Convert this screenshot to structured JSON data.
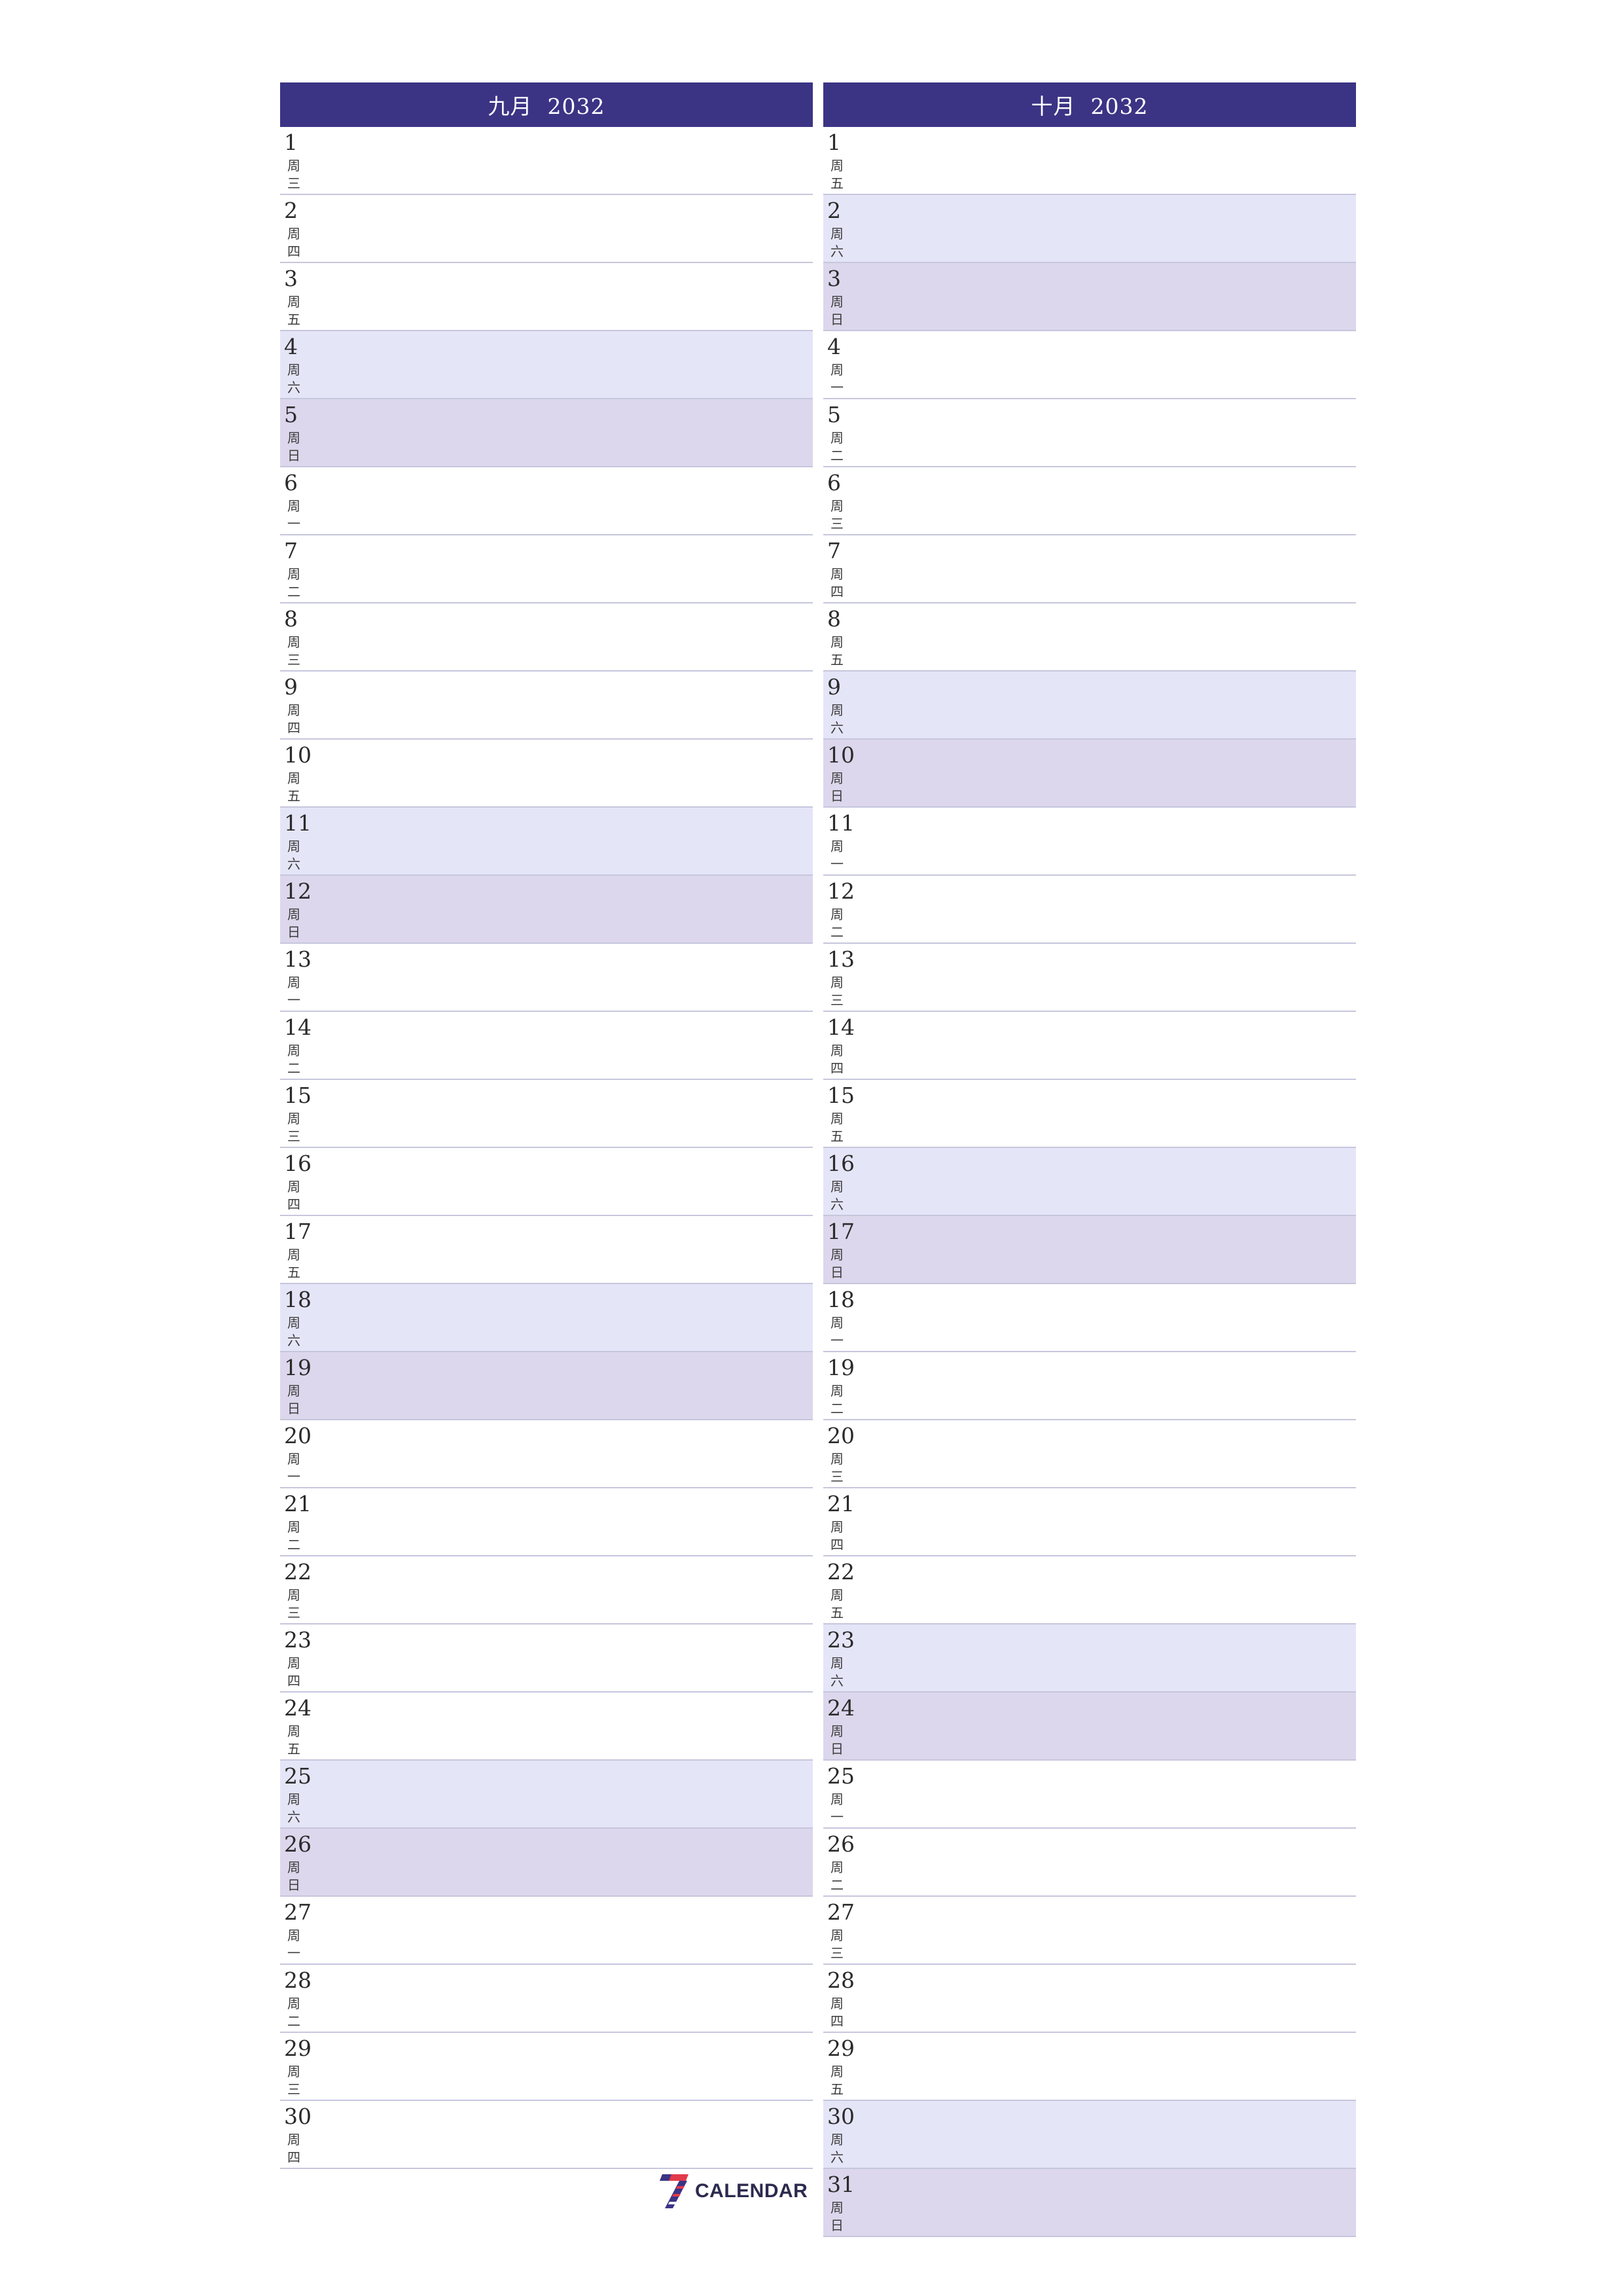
{
  "colors": {
    "header": "#3b3485",
    "saturday": "#e5e5f8",
    "sunday": "#dcd7ec",
    "row_border": "#c6c6dd"
  },
  "months": [
    {
      "title": "九月  2032",
      "days": [
        {
          "day": "1",
          "weekday": "周三"
        },
        {
          "day": "2",
          "weekday": "周四"
        },
        {
          "day": "3",
          "weekday": "周五"
        },
        {
          "day": "4",
          "weekday": "周六"
        },
        {
          "day": "5",
          "weekday": "周日"
        },
        {
          "day": "6",
          "weekday": "周一"
        },
        {
          "day": "7",
          "weekday": "周二"
        },
        {
          "day": "8",
          "weekday": "周三"
        },
        {
          "day": "9",
          "weekday": "周四"
        },
        {
          "day": "10",
          "weekday": "周五"
        },
        {
          "day": "11",
          "weekday": "周六"
        },
        {
          "day": "12",
          "weekday": "周日"
        },
        {
          "day": "13",
          "weekday": "周一"
        },
        {
          "day": "14",
          "weekday": "周二"
        },
        {
          "day": "15",
          "weekday": "周三"
        },
        {
          "day": "16",
          "weekday": "周四"
        },
        {
          "day": "17",
          "weekday": "周五"
        },
        {
          "day": "18",
          "weekday": "周六"
        },
        {
          "day": "19",
          "weekday": "周日"
        },
        {
          "day": "20",
          "weekday": "周一"
        },
        {
          "day": "21",
          "weekday": "周二"
        },
        {
          "day": "22",
          "weekday": "周三"
        },
        {
          "day": "23",
          "weekday": "周四"
        },
        {
          "day": "24",
          "weekday": "周五"
        },
        {
          "day": "25",
          "weekday": "周六"
        },
        {
          "day": "26",
          "weekday": "周日"
        },
        {
          "day": "27",
          "weekday": "周一"
        },
        {
          "day": "28",
          "weekday": "周二"
        },
        {
          "day": "29",
          "weekday": "周三"
        },
        {
          "day": "30",
          "weekday": "周四"
        }
      ]
    },
    {
      "title": "十月  2032",
      "days": [
        {
          "day": "1",
          "weekday": "周五"
        },
        {
          "day": "2",
          "weekday": "周六"
        },
        {
          "day": "3",
          "weekday": "周日"
        },
        {
          "day": "4",
          "weekday": "周一"
        },
        {
          "day": "5",
          "weekday": "周二"
        },
        {
          "day": "6",
          "weekday": "周三"
        },
        {
          "day": "7",
          "weekday": "周四"
        },
        {
          "day": "8",
          "weekday": "周五"
        },
        {
          "day": "9",
          "weekday": "周六"
        },
        {
          "day": "10",
          "weekday": "周日"
        },
        {
          "day": "11",
          "weekday": "周一"
        },
        {
          "day": "12",
          "weekday": "周二"
        },
        {
          "day": "13",
          "weekday": "周三"
        },
        {
          "day": "14",
          "weekday": "周四"
        },
        {
          "day": "15",
          "weekday": "周五"
        },
        {
          "day": "16",
          "weekday": "周六"
        },
        {
          "day": "17",
          "weekday": "周日"
        },
        {
          "day": "18",
          "weekday": "周一"
        },
        {
          "day": "19",
          "weekday": "周二"
        },
        {
          "day": "20",
          "weekday": "周三"
        },
        {
          "day": "21",
          "weekday": "周四"
        },
        {
          "day": "22",
          "weekday": "周五"
        },
        {
          "day": "23",
          "weekday": "周六"
        },
        {
          "day": "24",
          "weekday": "周日"
        },
        {
          "day": "25",
          "weekday": "周一"
        },
        {
          "day": "26",
          "weekday": "周二"
        },
        {
          "day": "27",
          "weekday": "周三"
        },
        {
          "day": "28",
          "weekday": "周四"
        },
        {
          "day": "29",
          "weekday": "周五"
        },
        {
          "day": "30",
          "weekday": "周六"
        },
        {
          "day": "31",
          "weekday": "周日"
        }
      ]
    }
  ],
  "logo": {
    "icon": "seven-logo-icon",
    "text": "CALENDAR"
  }
}
